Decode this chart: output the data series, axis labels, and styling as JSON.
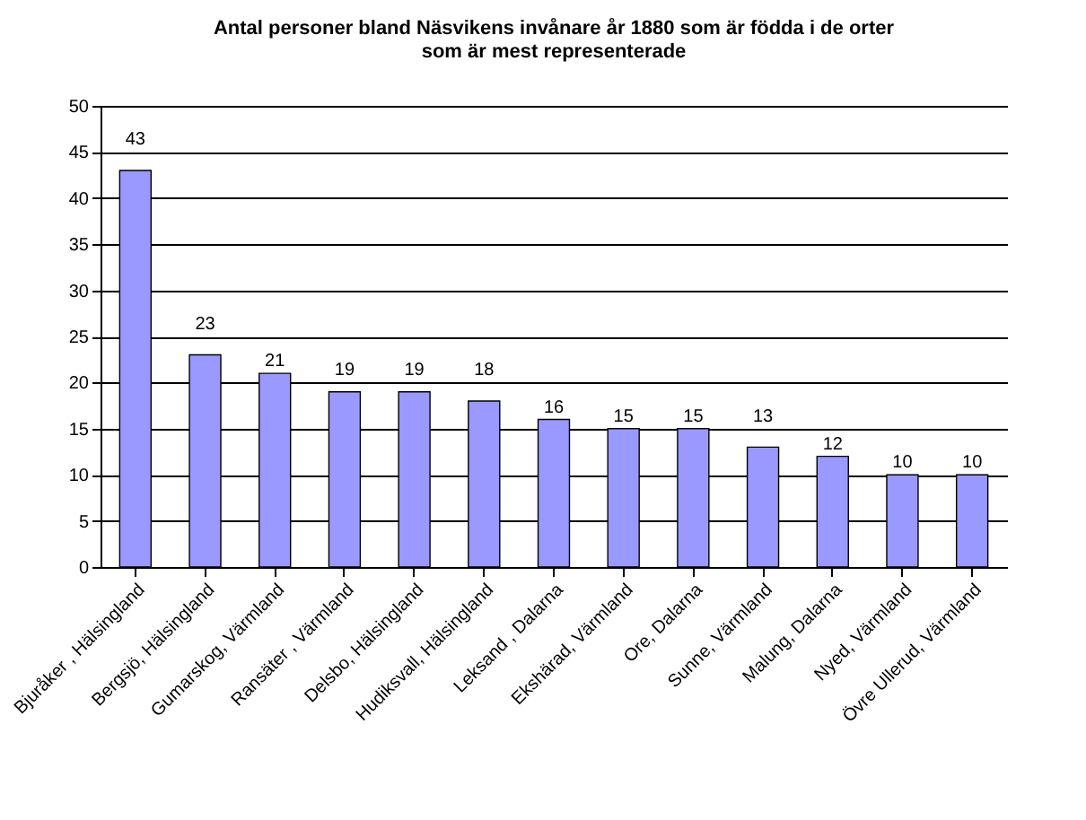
{
  "chart_data": {
    "type": "bar",
    "title": "Antal personer bland Näsvikens invånare år 1880 som är födda i de orter som är mest representerade",
    "categories": [
      "Bjuråker , Hälsingland",
      "Bergsjö, Hälsingland",
      "Gumarskog, Värmland",
      "Ransäter , Värmland",
      "Delsbo, Hälsingland",
      "Hudiksvall, Hälsingland",
      "Leksand , Dalarna",
      "Ekshärad, Värmland",
      "Ore, Dalarna",
      "Sunne, Värmland",
      "Malung, Dalarna",
      "Nyed, Värmland",
      "Övre Ullerud, Värmland"
    ],
    "values": [
      43,
      23,
      21,
      19,
      19,
      18,
      16,
      15,
      15,
      13,
      12,
      10,
      10
    ],
    "color": "#9999ff",
    "ylim": [
      0,
      50
    ],
    "yticks": [
      0,
      5,
      10,
      15,
      20,
      25,
      30,
      35,
      40,
      45,
      50
    ],
    "grid": "y",
    "data_labels": true
  }
}
